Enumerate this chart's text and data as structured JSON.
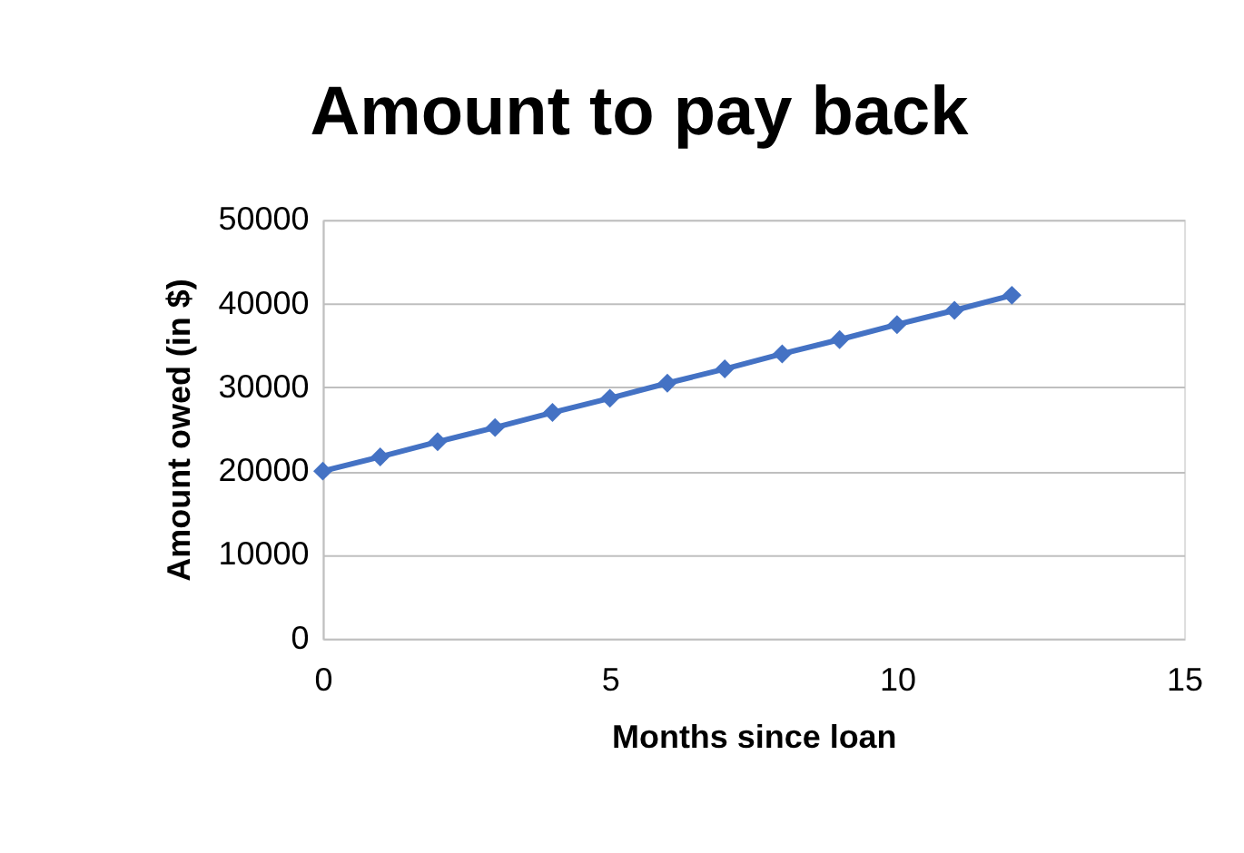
{
  "chart_data": {
    "type": "line",
    "title": "Amount to pay back",
    "xlabel": "Months since loan",
    "ylabel": "Amount owed (in $)",
    "x": [
      0,
      1,
      2,
      3,
      4,
      5,
      6,
      7,
      8,
      9,
      10,
      11,
      12
    ],
    "series": [
      {
        "color": "#4472c4",
        "values": [
          20000,
          21700,
          23500,
          25200,
          27000,
          28700,
          30500,
          32200,
          34000,
          35700,
          37500,
          39200,
          41000
        ]
      }
    ],
    "xlim": [
      0,
      15
    ],
    "xticks": [
      0,
      5,
      10,
      15
    ],
    "ylim": [
      0,
      50000
    ],
    "yticks": [
      0,
      10000,
      20000,
      30000,
      40000,
      50000
    ],
    "grid": "y",
    "marker": "diamond",
    "line_style": "solid"
  }
}
